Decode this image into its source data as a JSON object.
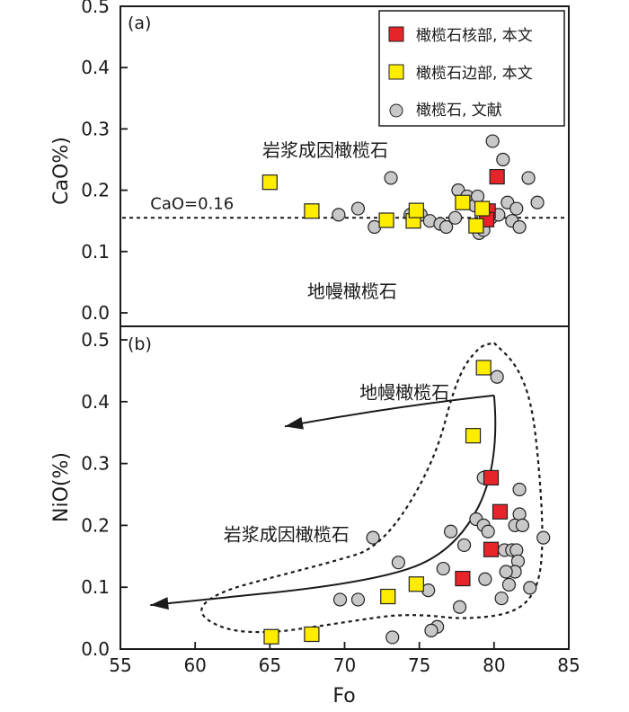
{
  "chart_data": [
    {
      "panel": "(a)",
      "type": "scatter",
      "ylabel": "CaO%)",
      "xlim": [
        55,
        85
      ],
      "ylim": [
        0.0,
        0.5
      ],
      "yticks": [
        "0.0",
        "0.1",
        "0.2",
        "0.3",
        "0.4",
        "0.5"
      ],
      "reference_line": {
        "y": 0.155,
        "label": "CaO=0.16"
      },
      "annotations": [
        {
          "text": "岩浆成因橄榄石",
          "x": 64.5,
          "y": 0.255
        },
        {
          "text": "地幔橄榄石",
          "x": 67.5,
          "y": 0.025
        }
      ],
      "legend": [
        {
          "label": "橄榄石核部, 本文",
          "marker": "square",
          "color": "#e8242b"
        },
        {
          "label": "橄榄石边部, 本文",
          "marker": "square",
          "color": "#ffed00"
        },
        {
          "label": "橄榄石, 文献",
          "marker": "circle",
          "color": "#c8c8c8"
        }
      ],
      "series": [
        {
          "name": "橄榄石核部, 本文",
          "marker": "square",
          "color": "#e8242b",
          "points": [
            [
              80.2,
              0.222
            ],
            [
              79.6,
              0.166
            ],
            [
              79.5,
              0.152
            ]
          ]
        },
        {
          "name": "橄榄石边部, 本文",
          "marker": "square",
          "color": "#ffed00",
          "points": [
            [
              65.0,
              0.213
            ],
            [
              67.8,
              0.166
            ],
            [
              72.8,
              0.151
            ],
            [
              74.6,
              0.15
            ],
            [
              74.8,
              0.167
            ],
            [
              77.9,
              0.18
            ],
            [
              78.8,
              0.142
            ],
            [
              79.2,
              0.17
            ]
          ]
        },
        {
          "name": "橄榄石, 文献",
          "marker": "circle",
          "color": "#c8c8c8",
          "points": [
            [
              69.6,
              0.16
            ],
            [
              70.9,
              0.17
            ],
            [
              72.0,
              0.14
            ],
            [
              73.1,
              0.22
            ],
            [
              74.4,
              0.16
            ],
            [
              75.1,
              0.16
            ],
            [
              75.7,
              0.15
            ],
            [
              76.4,
              0.145
            ],
            [
              76.8,
              0.14
            ],
            [
              77.4,
              0.155
            ],
            [
              77.6,
              0.2
            ],
            [
              78.2,
              0.19
            ],
            [
              78.7,
              0.175
            ],
            [
              78.9,
              0.19
            ],
            [
              79.0,
              0.13
            ],
            [
              79.3,
              0.135
            ],
            [
              79.8,
              0.155
            ],
            [
              79.9,
              0.28
            ],
            [
              80.3,
              0.16
            ],
            [
              80.6,
              0.25
            ],
            [
              80.9,
              0.18
            ],
            [
              81.2,
              0.15
            ],
            [
              81.5,
              0.17
            ],
            [
              81.7,
              0.14
            ],
            [
              82.3,
              0.22
            ],
            [
              82.9,
              0.18
            ]
          ]
        }
      ]
    },
    {
      "panel": "(b)",
      "type": "scatter",
      "xlabel": "Fo",
      "ylabel": "NiO(%)",
      "xlim": [
        55,
        85
      ],
      "ylim": [
        0.0,
        0.5
      ],
      "xticks": [
        "55",
        "60",
        "65",
        "70",
        "75",
        "80",
        "85"
      ],
      "yticks": [
        "0.0",
        "0.1",
        "0.2",
        "0.3",
        "0.4",
        "0.5"
      ],
      "annotations": [
        {
          "text": "地幔橄榄石",
          "x": 71.0,
          "y": 0.405
        },
        {
          "text": "岩浆成因橄榄石",
          "x": 61.9,
          "y": 0.175
        }
      ],
      "arrows": [
        {
          "name": "mantle-olivine-arrow",
          "path": [
            [
              80.0,
              0.41
            ],
            [
              73.5,
              0.393
            ],
            [
              66.0,
              0.36
            ]
          ]
        },
        {
          "name": "magmatic-olivine-arrow",
          "path": [
            [
              80.0,
              0.41
            ],
            [
              80.4,
              0.3
            ],
            [
              77.5,
              0.16
            ],
            [
              72.0,
              0.108
            ],
            [
              57.0,
              0.071
            ]
          ]
        }
      ],
      "field_boundary": {
        "style": "dashed",
        "label": "岩浆成因橄榄石",
        "path": [
          [
            80.0,
            0.495
          ],
          [
            81.5,
            0.46
          ],
          [
            82.5,
            0.4
          ],
          [
            83.0,
            0.3
          ],
          [
            83.3,
            0.18
          ],
          [
            83.0,
            0.1
          ],
          [
            81.5,
            0.058
          ],
          [
            78.0,
            0.048
          ],
          [
            75.5,
            0.055
          ],
          [
            73.3,
            0.055
          ],
          [
            71.0,
            0.047
          ],
          [
            68.0,
            0.036
          ],
          [
            65.0,
            0.026
          ],
          [
            62.0,
            0.03
          ],
          [
            60.0,
            0.06
          ],
          [
            61.5,
            0.092
          ],
          [
            65.5,
            0.118
          ],
          [
            69.0,
            0.14
          ],
          [
            72.5,
            0.165
          ],
          [
            76.0,
            0.3
          ],
          [
            77.5,
            0.44
          ],
          [
            79.0,
            0.49
          ],
          [
            80.0,
            0.495
          ]
        ]
      },
      "series": [
        {
          "name": "橄榄石核部, 本文",
          "marker": "square",
          "color": "#e8242b",
          "points": [
            [
              79.8,
              0.277
            ],
            [
              80.4,
              0.222
            ],
            [
              79.8,
              0.161
            ],
            [
              77.9,
              0.114
            ]
          ]
        },
        {
          "name": "橄榄石边部, 本文",
          "marker": "square",
          "color": "#ffed00",
          "points": [
            [
              79.3,
              0.455
            ],
            [
              78.6,
              0.345
            ],
            [
              74.8,
              0.105
            ],
            [
              72.9,
              0.085
            ],
            [
              65.1,
              0.02
            ],
            [
              67.8,
              0.024
            ]
          ]
        },
        {
          "name": "橄榄石, 文献",
          "marker": "circle",
          "color": "#c8c8c8",
          "points": [
            [
              80.2,
              0.44
            ],
            [
              79.3,
              0.277
            ],
            [
              81.7,
              0.258
            ],
            [
              78.8,
              0.21
            ],
            [
              79.3,
              0.2
            ],
            [
              79.6,
              0.19
            ],
            [
              81.7,
              0.218
            ],
            [
              81.4,
              0.2
            ],
            [
              81.9,
              0.2
            ],
            [
              77.1,
              0.19
            ],
            [
              71.9,
              0.18
            ],
            [
              83.3,
              0.18
            ],
            [
              80.7,
              0.16
            ],
            [
              81.2,
              0.16
            ],
            [
              81.5,
              0.16
            ],
            [
              78.0,
              0.168
            ],
            [
              81.6,
              0.142
            ],
            [
              81.4,
              0.125
            ],
            [
              80.8,
              0.125
            ],
            [
              73.6,
              0.14
            ],
            [
              76.6,
              0.13
            ],
            [
              79.4,
              0.113
            ],
            [
              81.0,
              0.104
            ],
            [
              82.4,
              0.099
            ],
            [
              80.5,
              0.082
            ],
            [
              75.6,
              0.095
            ],
            [
              69.7,
              0.08
            ],
            [
              70.9,
              0.08
            ],
            [
              77.7,
              0.068
            ],
            [
              76.2,
              0.036
            ],
            [
              75.8,
              0.03
            ],
            [
              73.2,
              0.019
            ]
          ]
        }
      ]
    }
  ]
}
